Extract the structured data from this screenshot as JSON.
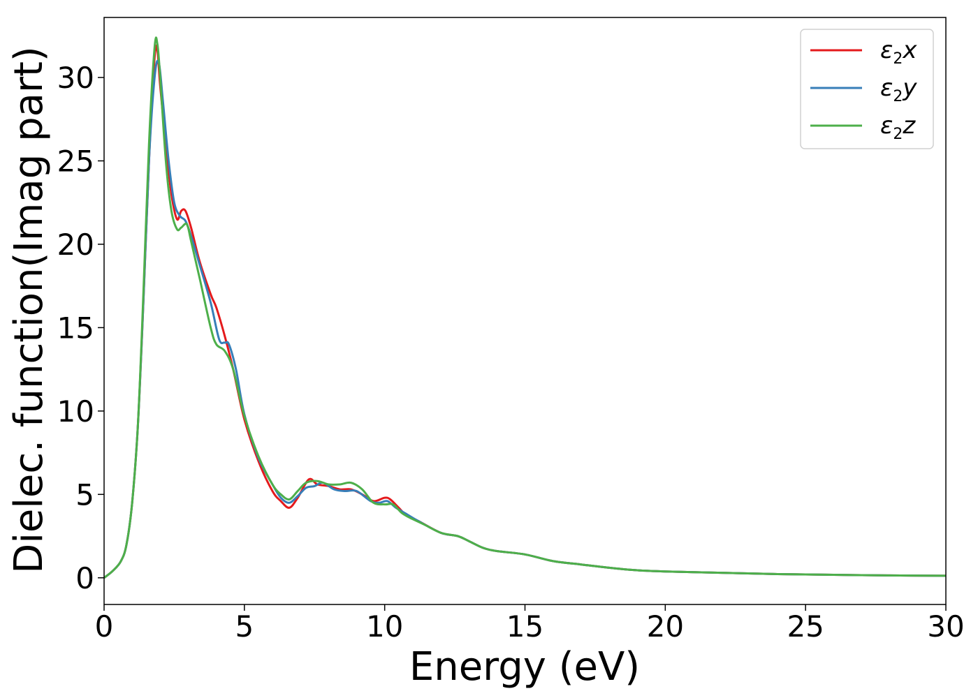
{
  "chart_data": {
    "type": "line",
    "xlabel": "Energy (eV)",
    "ylabel": "Dielec. function(Imag part)",
    "xlim": [
      0,
      30
    ],
    "ylim": [
      -1.6,
      33.6
    ],
    "xticks": [
      0,
      5,
      10,
      15,
      20,
      25,
      30
    ],
    "xtick_labels": [
      "0",
      "5",
      "10",
      "15",
      "20",
      "25",
      "30"
    ],
    "yticks": [
      0,
      5,
      10,
      15,
      20,
      25,
      30
    ],
    "ytick_labels": [
      "0",
      "5",
      "10",
      "15",
      "20",
      "25",
      "30"
    ],
    "grid": false,
    "legend_position": "top-right",
    "series": [
      {
        "name": "ε2x",
        "legend_base": "ε",
        "legend_sub": "2",
        "legend_tail": "x",
        "color": "#e41a1c",
        "x": [
          0,
          0.3,
          0.6,
          0.8,
          1.0,
          1.2,
          1.4,
          1.6,
          1.8,
          1.9,
          2.0,
          2.2,
          2.4,
          2.6,
          2.75,
          2.9,
          3.1,
          3.4,
          3.8,
          4.0,
          4.3,
          4.6,
          5.0,
          5.5,
          6.0,
          6.3,
          6.6,
          6.9,
          7.3,
          7.6,
          8.0,
          8.4,
          8.8,
          9.2,
          9.6,
          10.0,
          10.2,
          10.5,
          10.8,
          11.2,
          12.0,
          12.6,
          13.0,
          13.5,
          14.0,
          15.0,
          16.0,
          17.0,
          18.0,
          19.0,
          20.0,
          22.0,
          24.0,
          26.0,
          28.0,
          30.0
        ],
        "y": [
          0.0,
          0.4,
          1.0,
          2.0,
          4.5,
          9.0,
          16.5,
          25.0,
          31.2,
          31.6,
          29.5,
          26.0,
          23.0,
          21.5,
          22.0,
          22.0,
          21.0,
          19.0,
          17.0,
          16.2,
          14.5,
          12.5,
          9.5,
          7.0,
          5.2,
          4.6,
          4.2,
          4.8,
          5.9,
          5.6,
          5.5,
          5.3,
          5.3,
          5.0,
          4.6,
          4.8,
          4.7,
          4.2,
          3.7,
          3.4,
          2.7,
          2.5,
          2.2,
          1.8,
          1.6,
          1.4,
          1.0,
          0.8,
          0.6,
          0.45,
          0.38,
          0.3,
          0.22,
          0.18,
          0.14,
          0.12
        ]
      },
      {
        "name": "ε2y",
        "legend_base": "ε",
        "legend_sub": "2",
        "legend_tail": "y",
        "color": "#377eb8",
        "x": [
          0,
          0.3,
          0.6,
          0.8,
          1.0,
          1.2,
          1.4,
          1.6,
          1.8,
          1.95,
          2.1,
          2.3,
          2.5,
          2.7,
          2.9,
          3.1,
          3.4,
          3.8,
          4.1,
          4.3,
          4.45,
          4.7,
          5.0,
          5.5,
          6.0,
          6.3,
          6.6,
          6.9,
          7.2,
          7.5,
          7.8,
          8.2,
          8.6,
          9.0,
          9.5,
          9.8,
          10.1,
          10.4,
          10.8,
          11.2,
          12.0,
          12.6,
          13.0,
          13.5,
          14.0,
          15.0,
          16.0,
          17.0,
          18.0,
          19.0,
          20.0,
          22.0,
          24.0,
          26.0,
          28.0,
          30.0
        ],
        "y": [
          0.0,
          0.4,
          1.0,
          2.0,
          4.5,
          9.0,
          16.5,
          25.0,
          30.0,
          30.9,
          28.5,
          25.0,
          22.5,
          21.7,
          21.4,
          20.5,
          18.8,
          16.5,
          14.3,
          14.1,
          14.0,
          12.5,
          9.8,
          7.2,
          5.6,
          4.8,
          4.5,
          4.9,
          5.4,
          5.5,
          5.7,
          5.3,
          5.2,
          5.2,
          4.6,
          4.5,
          4.6,
          4.2,
          3.8,
          3.4,
          2.7,
          2.5,
          2.2,
          1.8,
          1.6,
          1.4,
          1.0,
          0.8,
          0.6,
          0.45,
          0.38,
          0.3,
          0.22,
          0.18,
          0.14,
          0.12
        ]
      },
      {
        "name": "ε2z",
        "legend_base": "ε",
        "legend_sub": "2",
        "legend_tail": "z",
        "color": "#4daf4a",
        "x": [
          0,
          0.3,
          0.6,
          0.8,
          1.0,
          1.2,
          1.4,
          1.6,
          1.8,
          1.9,
          2.0,
          2.2,
          2.4,
          2.6,
          2.75,
          2.95,
          3.1,
          3.4,
          3.8,
          4.0,
          4.3,
          4.6,
          5.0,
          5.5,
          6.0,
          6.3,
          6.6,
          6.9,
          7.2,
          7.6,
          8.0,
          8.4,
          8.8,
          9.2,
          9.6,
          10.0,
          10.3,
          10.6,
          10.9,
          11.4,
          12.0,
          12.6,
          13.0,
          13.5,
          14.0,
          15.0,
          16.0,
          17.0,
          18.0,
          19.0,
          20.0,
          22.0,
          24.0,
          26.0,
          28.0,
          30.0
        ],
        "y": [
          0.0,
          0.4,
          1.0,
          2.0,
          4.5,
          9.0,
          17.0,
          26.0,
          31.8,
          32.0,
          30.0,
          25.0,
          22.0,
          20.9,
          21.0,
          21.2,
          20.2,
          18.0,
          15.0,
          14.0,
          13.6,
          12.5,
          9.7,
          7.3,
          5.6,
          5.0,
          4.7,
          5.2,
          5.7,
          5.8,
          5.6,
          5.6,
          5.7,
          5.3,
          4.5,
          4.4,
          4.4,
          3.9,
          3.6,
          3.2,
          2.7,
          2.5,
          2.2,
          1.8,
          1.6,
          1.4,
          1.0,
          0.8,
          0.6,
          0.45,
          0.38,
          0.3,
          0.22,
          0.18,
          0.14,
          0.12
        ]
      }
    ]
  }
}
